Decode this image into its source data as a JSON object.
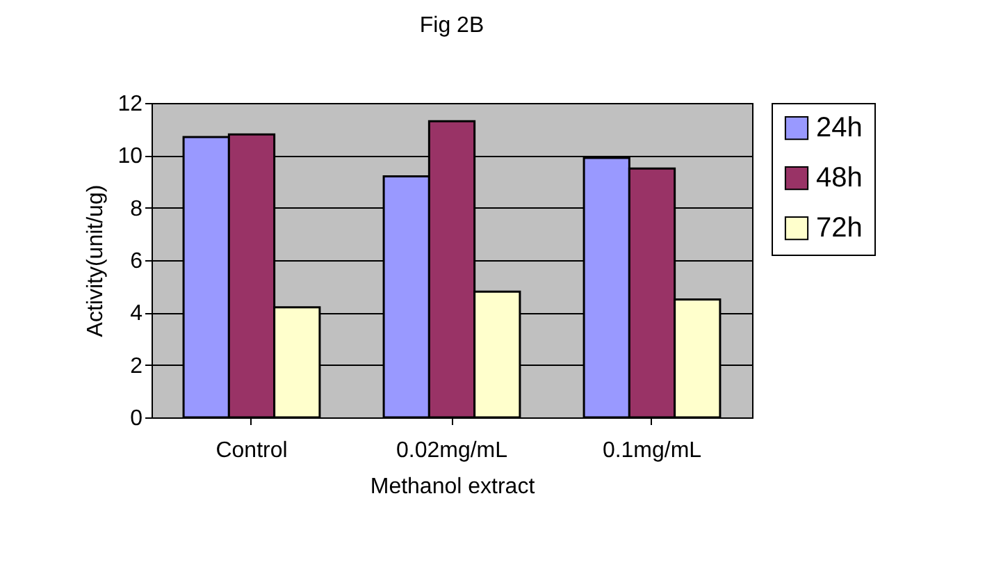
{
  "chart_data": {
    "type": "bar",
    "title": "Fig 2B",
    "xlabel": "Methanol extract",
    "ylabel": "Activity(unit/ug)",
    "categories": [
      "Control",
      "0.02mg/mL",
      "0.1mg/mL"
    ],
    "series": [
      {
        "name": "24h",
        "color": "#9999ff",
        "values": [
          10.7,
          9.2,
          9.9
        ]
      },
      {
        "name": "48h",
        "color": "#993366",
        "values": [
          10.8,
          11.3,
          9.5
        ]
      },
      {
        "name": "72h",
        "color": "#ffffcc",
        "values": [
          4.2,
          4.8,
          4.5
        ]
      }
    ],
    "ylim": [
      0,
      12
    ],
    "yticks": [
      0,
      2,
      4,
      6,
      8,
      10,
      12
    ],
    "grid": "y",
    "legend": "right"
  }
}
